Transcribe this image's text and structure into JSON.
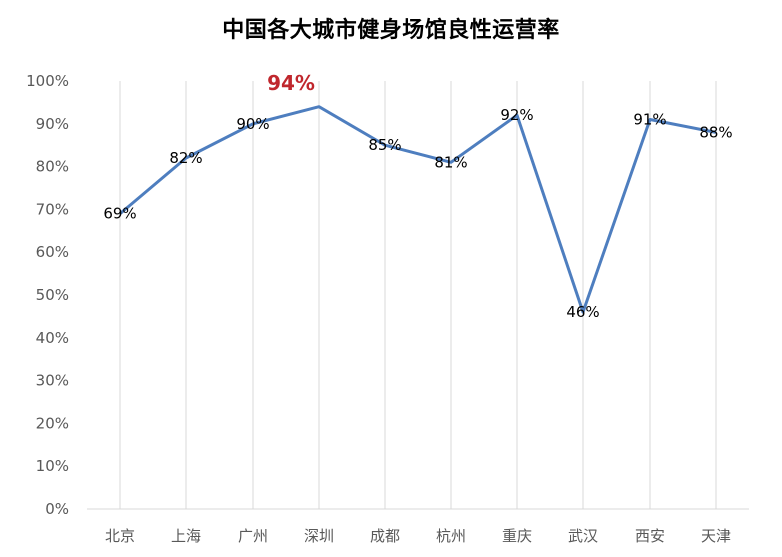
{
  "title": "中国各大城市健身场馆良性运营率",
  "chart_data": {
    "type": "line",
    "title": "中国各大城市健身场馆良性运营率",
    "xlabel": "",
    "ylabel": "",
    "categories": [
      "北京",
      "上海",
      "广州",
      "深圳",
      "成都",
      "杭州",
      "重庆",
      "武汉",
      "西安",
      "天津"
    ],
    "series": [
      {
        "name": "良性运营率",
        "values": [
          69,
          82,
          90,
          94,
          85,
          81,
          92,
          46,
          91,
          88
        ],
        "color": "#4e7ebf"
      }
    ],
    "data_labels": [
      "69%",
      "82%",
      "90%",
      "94%",
      "85%",
      "81%",
      "92%",
      "46%",
      "91%",
      "88%"
    ],
    "highlight": {
      "category": "深圳",
      "label": "94%",
      "color": "#c0272d"
    },
    "ylim": [
      0,
      100
    ],
    "yticks": [
      "0%",
      "10%",
      "20%",
      "30%",
      "40%",
      "50%",
      "60%",
      "70%",
      "80%",
      "90%",
      "100%"
    ],
    "grid": {
      "vertical": true,
      "horizontal": false,
      "color": "#d9d9d9"
    },
    "legend": "none"
  }
}
